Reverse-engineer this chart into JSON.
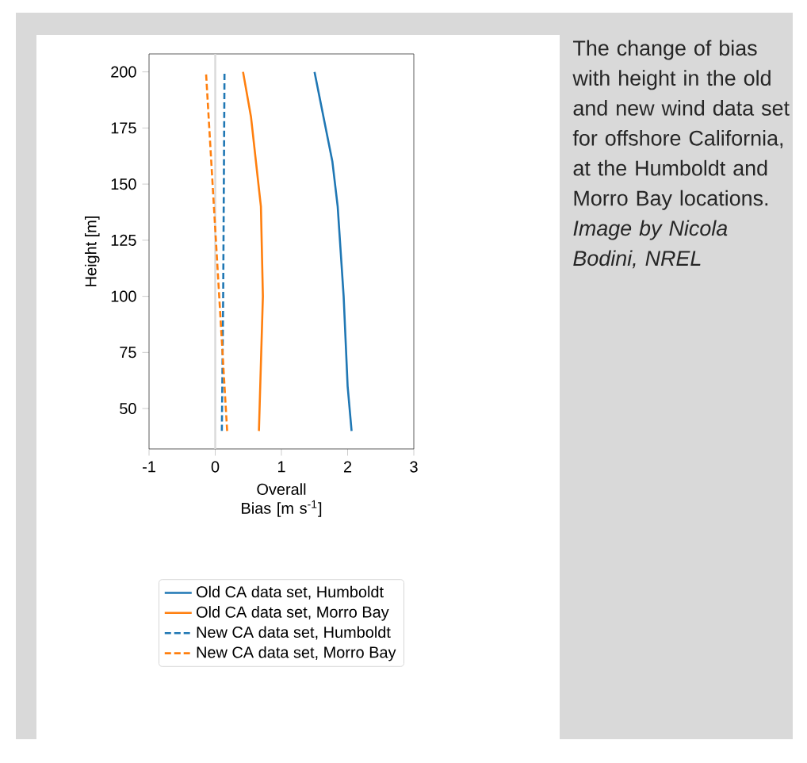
{
  "chart_data": {
    "type": "line",
    "xlabel": "Overall Bias [m s$^{-1}$]",
    "ylabel": "Height [m]",
    "xlim": [
      -1,
      3
    ],
    "xticks": [
      -1,
      0,
      1,
      2,
      3
    ],
    "ylim": [
      32,
      208
    ],
    "yticks": [
      50,
      75,
      100,
      125,
      150,
      175,
      200
    ],
    "legend": "bottom",
    "ref_lines": [
      {
        "axis": "x",
        "value": 0,
        "color": "#d9d9d9"
      }
    ],
    "annotations": [
      "The change of bias with height in the old and new wind data set for offshore California, at the Humboldt and Morro Bay locations. *Image by Nicola Bodini, NREL*"
    ],
    "series": [
      {
        "name": "Old CA data set, Humboldt",
        "color": "#1f77b4",
        "line_style": "solid",
        "x": [
          2.06,
          2.0,
          1.94,
          1.85,
          1.77,
          1.5
        ],
        "values": [
          40,
          60,
          100,
          140,
          160,
          200
        ]
      },
      {
        "name": "Old CA data set, Morro Bay",
        "color": "#ff7f0e",
        "line_style": "solid",
        "x": [
          0.66,
          0.72,
          0.69,
          0.54,
          0.42
        ],
        "values": [
          40,
          100,
          140,
          180,
          200
        ]
      },
      {
        "name": "New CA data set, Humboldt",
        "color": "#1f77b4",
        "line_style": "dashed",
        "x": [
          0.1,
          0.12,
          0.14
        ],
        "values": [
          40,
          100,
          200
        ]
      },
      {
        "name": "New CA data set, Morro Bay",
        "color": "#ff7f0e",
        "line_style": "dashed",
        "x": [
          0.18,
          0.06,
          -0.14
        ],
        "values": [
          40,
          100,
          200
        ]
      }
    ]
  }
}
